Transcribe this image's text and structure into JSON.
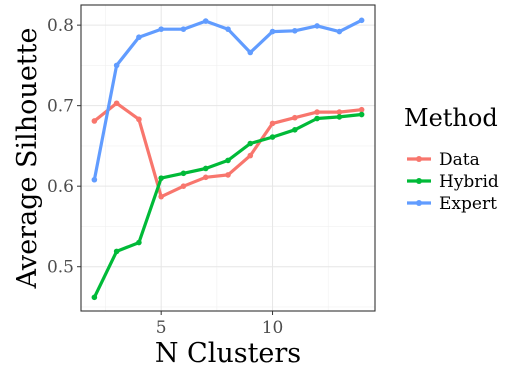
{
  "chart_data": {
    "type": "line",
    "xlabel": "N Clusters",
    "ylabel": "Average Silhouette",
    "xlim": [
      1.4,
      14.6
    ],
    "ylim": [
      0.445,
      0.825
    ],
    "x_ticks": [
      5,
      10
    ],
    "y_ticks": [
      0.5,
      0.6,
      0.7,
      0.8
    ],
    "x_tick_labels": [
      "5",
      "10"
    ],
    "y_tick_labels": [
      "0.5",
      "0.6",
      "0.7",
      "0.8"
    ],
    "grid": true,
    "legend": {
      "title": "Method",
      "placement": "right"
    },
    "x": [
      2,
      3,
      4,
      5,
      6,
      7,
      8,
      9,
      10,
      11,
      12,
      13,
      14
    ],
    "series": [
      {
        "name": "Data",
        "color": "#F8766D",
        "values": [
          0.681,
          0.703,
          0.683,
          0.587,
          0.6,
          0.611,
          0.614,
          0.638,
          0.678,
          0.685,
          0.692,
          0.692,
          0.695
        ]
      },
      {
        "name": "Hybrid",
        "color": "#00BA38",
        "values": [
          0.462,
          0.519,
          0.53,
          0.61,
          0.616,
          0.622,
          0.632,
          0.653,
          0.661,
          0.67,
          0.684,
          0.686,
          0.689
        ]
      },
      {
        "name": "Expert",
        "color": "#619CFF",
        "values": [
          0.608,
          0.75,
          0.785,
          0.795,
          0.795,
          0.805,
          0.795,
          0.766,
          0.792,
          0.793,
          0.799,
          0.792,
          0.806
        ]
      }
    ]
  }
}
